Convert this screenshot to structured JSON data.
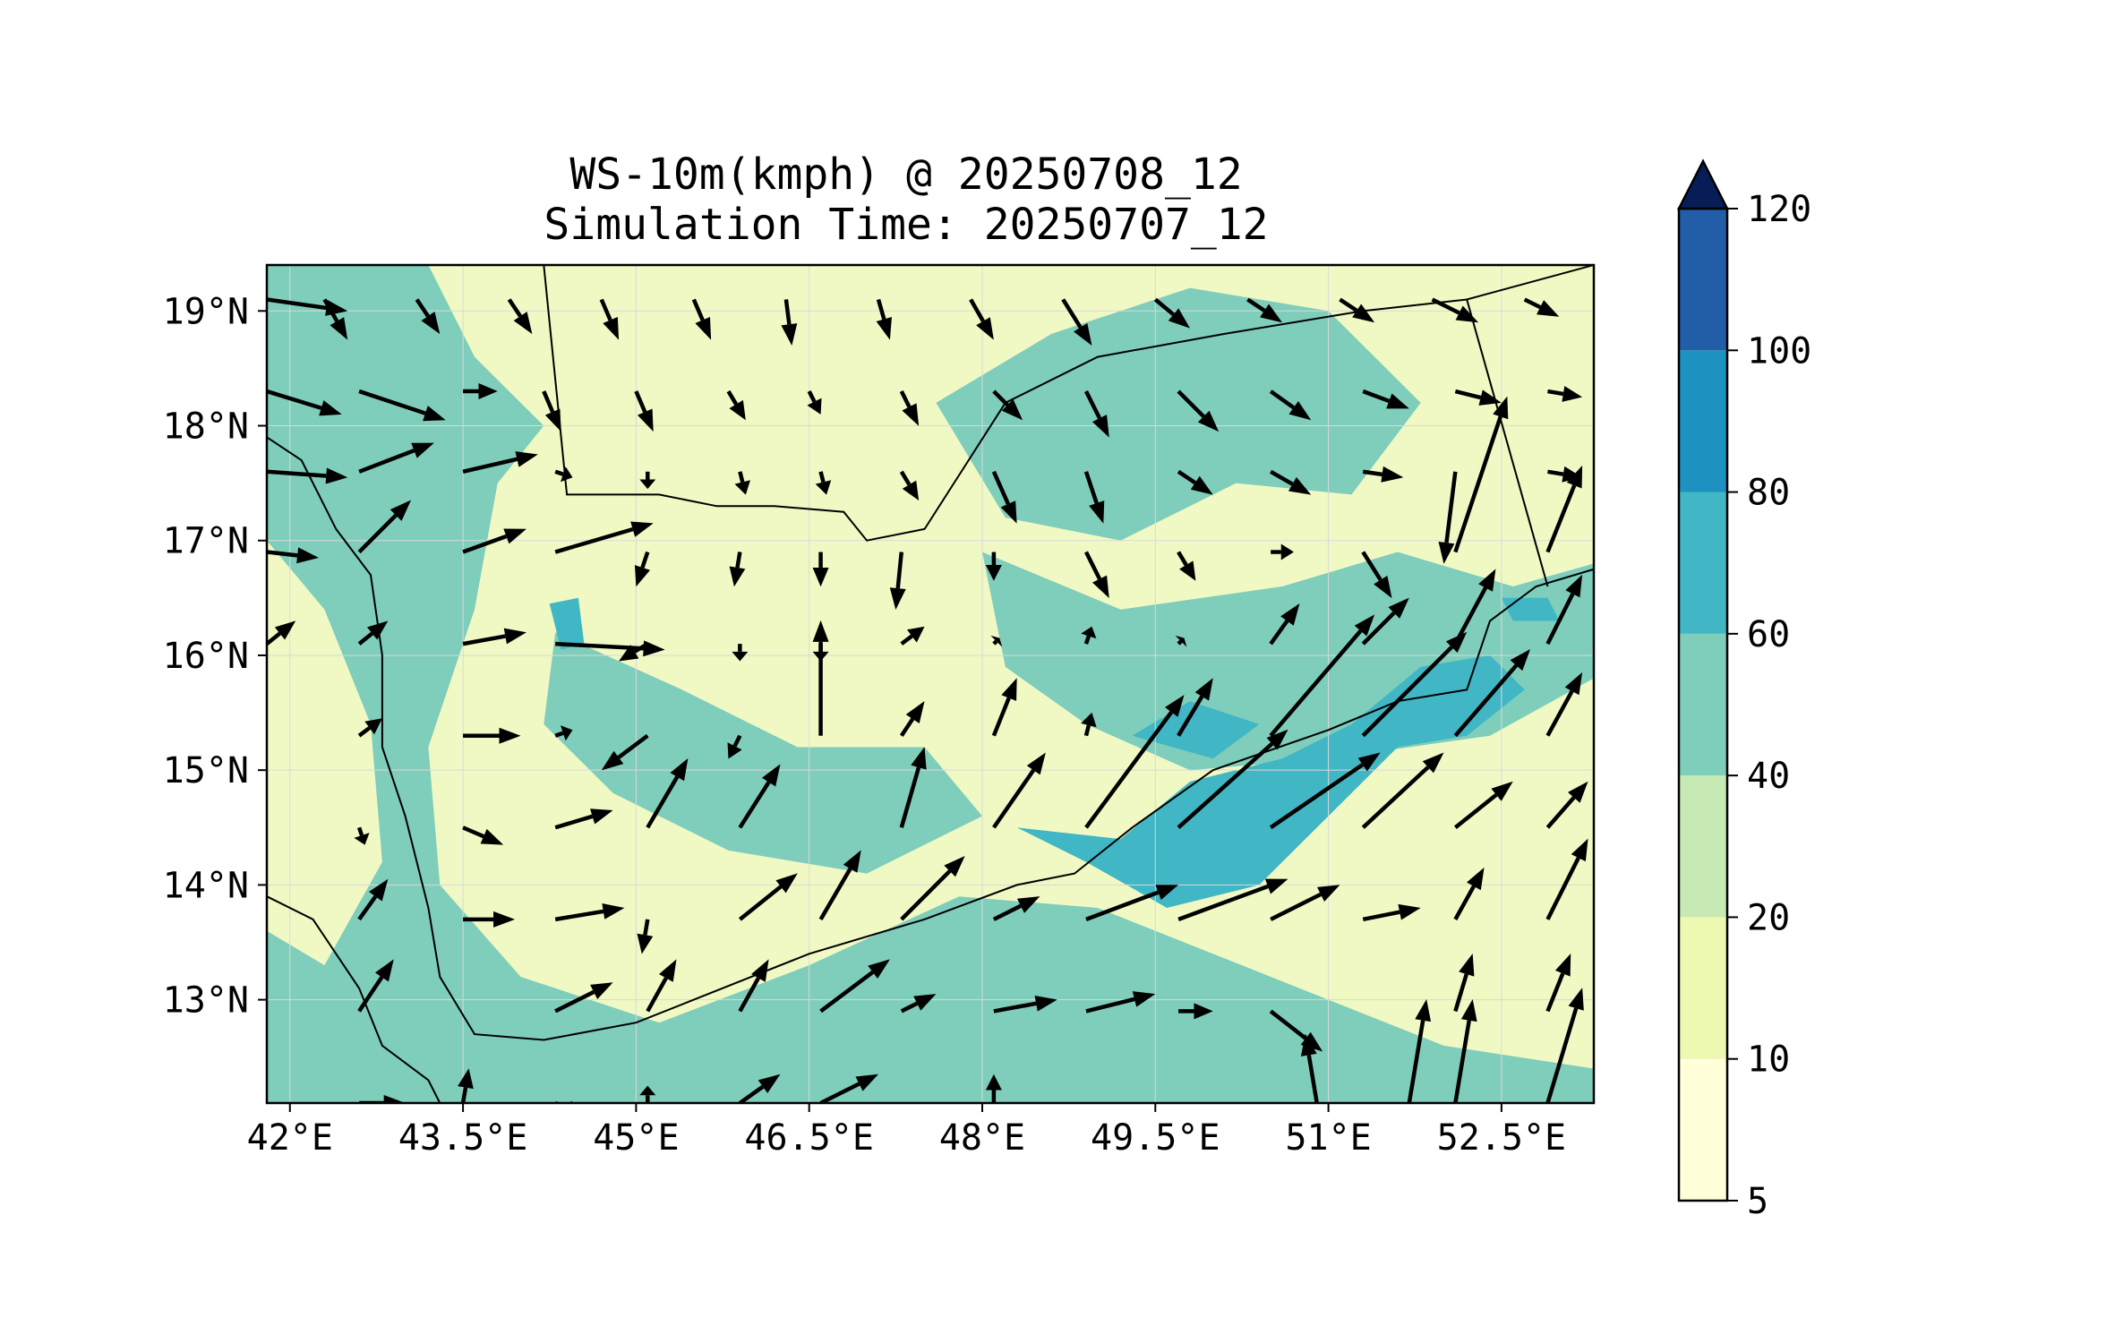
{
  "title": {
    "line1": "WS-10m(kmph) @ 20250708_12",
    "line2": "Simulation Time: 20250707_12"
  },
  "map": {
    "lon_range": [
      41.8,
      53.3
    ],
    "lat_range": [
      12.1,
      19.4
    ],
    "lon_ticks": [
      {
        "value": 42.0,
        "label": "42°E"
      },
      {
        "value": 43.5,
        "label": "43.5°E"
      },
      {
        "value": 45.0,
        "label": "45°E"
      },
      {
        "value": 46.5,
        "label": "46.5°E"
      },
      {
        "value": 48.0,
        "label": "48°E"
      },
      {
        "value": 49.5,
        "label": "49.5°E"
      },
      {
        "value": 51.0,
        "label": "51°E"
      },
      {
        "value": 52.5,
        "label": "52.5°E"
      }
    ],
    "lat_ticks": [
      {
        "value": 19,
        "label": "19°N"
      },
      {
        "value": 18,
        "label": "18°N"
      },
      {
        "value": 17,
        "label": "17°N"
      },
      {
        "value": 16,
        "label": "16°N"
      },
      {
        "value": 15,
        "label": "15°N"
      },
      {
        "value": 14,
        "label": "14°N"
      },
      {
        "value": 13,
        "label": "13°N"
      }
    ],
    "background_color": "#f0f9c4",
    "coastline_color": "#000000",
    "vector_color": "#000000"
  },
  "colorbar": {
    "levels": [
      {
        "value": 5,
        "label": "5"
      },
      {
        "value": 10,
        "label": "10"
      },
      {
        "value": 20,
        "label": "20"
      },
      {
        "value": 40,
        "label": "40"
      },
      {
        "value": 60,
        "label": "60"
      },
      {
        "value": 80,
        "label": "80"
      },
      {
        "value": 100,
        "label": "100"
      },
      {
        "value": 120,
        "label": "120"
      }
    ],
    "colors": [
      "#ffffd9",
      "#edf8b1",
      "#c7e9b4",
      "#7fcdbb",
      "#41b6c4",
      "#1d91c0",
      "#225ea8",
      "#253494"
    ],
    "extend_color": "#081d58",
    "extend": "max"
  },
  "wind_regions": [
    {
      "level": 20,
      "lonlat": [
        [
          41.8,
          19.4
        ],
        [
          43.2,
          19.4
        ],
        [
          43.6,
          18.6
        ],
        [
          44.2,
          18.0
        ],
        [
          43.8,
          17.5
        ],
        [
          43.6,
          16.4
        ],
        [
          43.2,
          15.2
        ],
        [
          43.3,
          14.0
        ],
        [
          44.0,
          13.2
        ],
        [
          45.2,
          12.8
        ],
        [
          46.5,
          13.3
        ],
        [
          47.8,
          13.9
        ],
        [
          49.0,
          13.8
        ],
        [
          50.5,
          13.2
        ],
        [
          52.0,
          12.6
        ],
        [
          53.3,
          12.4
        ],
        [
          53.3,
          12.1
        ],
        [
          41.8,
          12.1
        ],
        [
          41.8,
          13.6
        ],
        [
          42.3,
          13.3
        ],
        [
          42.8,
          14.2
        ],
        [
          42.7,
          15.4
        ],
        [
          42.3,
          16.4
        ],
        [
          41.8,
          17.0
        ]
      ]
    },
    {
      "level": 20,
      "lonlat": [
        [
          47.6,
          18.2
        ],
        [
          48.6,
          18.8
        ],
        [
          49.8,
          19.2
        ],
        [
          51.0,
          19.0
        ],
        [
          51.8,
          18.2
        ],
        [
          51.2,
          17.4
        ],
        [
          50.2,
          17.5
        ],
        [
          49.2,
          17.0
        ],
        [
          48.2,
          17.2
        ]
      ]
    },
    {
      "level": 20,
      "lonlat": [
        [
          48.0,
          16.9
        ],
        [
          49.2,
          16.4
        ],
        [
          50.6,
          16.6
        ],
        [
          51.6,
          16.9
        ],
        [
          52.6,
          16.6
        ],
        [
          53.3,
          16.8
        ],
        [
          53.3,
          15.8
        ],
        [
          52.4,
          15.3
        ],
        [
          51.0,
          15.1
        ],
        [
          49.8,
          15.0
        ],
        [
          48.9,
          15.4
        ],
        [
          48.2,
          15.9
        ]
      ]
    },
    {
      "level": 20,
      "lonlat": [
        [
          44.3,
          16.2
        ],
        [
          45.4,
          15.7
        ],
        [
          46.4,
          15.2
        ],
        [
          47.5,
          15.2
        ],
        [
          48.0,
          14.6
        ],
        [
          47.0,
          14.1
        ],
        [
          45.8,
          14.3
        ],
        [
          44.8,
          14.8
        ],
        [
          44.2,
          15.4
        ]
      ]
    },
    {
      "level": 40,
      "lonlat": [
        [
          48.3,
          14.5
        ],
        [
          49.2,
          14.4
        ],
        [
          49.8,
          14.9
        ],
        [
          50.6,
          15.1
        ],
        [
          51.2,
          15.4
        ],
        [
          51.8,
          15.9
        ],
        [
          52.4,
          16.0
        ],
        [
          52.7,
          15.7
        ],
        [
          52.2,
          15.3
        ],
        [
          51.6,
          15.2
        ],
        [
          51.0,
          14.6
        ],
        [
          50.4,
          14.0
        ],
        [
          49.6,
          13.8
        ],
        [
          48.9,
          14.2
        ]
      ]
    },
    {
      "level": 40,
      "lonlat": [
        [
          49.3,
          15.3
        ],
        [
          50.0,
          15.1
        ],
        [
          50.4,
          15.4
        ],
        [
          49.8,
          15.6
        ]
      ]
    },
    {
      "level": 40,
      "lonlat": [
        [
          52.6,
          16.3
        ],
        [
          53.0,
          16.3
        ],
        [
          52.9,
          16.5
        ],
        [
          52.5,
          16.5
        ]
      ]
    },
    {
      "level": 40,
      "lonlat": [
        [
          44.25,
          16.45
        ],
        [
          44.5,
          16.5
        ],
        [
          44.55,
          16.1
        ],
        [
          44.35,
          16.05
        ]
      ]
    }
  ],
  "land_outlines": [
    [
      [
        41.8,
        17.9
      ],
      [
        42.1,
        17.7
      ],
      [
        42.4,
        17.1
      ],
      [
        42.7,
        16.7
      ],
      [
        42.8,
        16.0
      ],
      [
        42.8,
        15.2
      ],
      [
        43.0,
        14.6
      ],
      [
        43.2,
        13.8
      ],
      [
        43.3,
        13.2
      ],
      [
        43.6,
        12.7
      ],
      [
        44.2,
        12.65
      ],
      [
        45.0,
        12.8
      ],
      [
        45.5,
        13.0
      ],
      [
        46.5,
        13.4
      ],
      [
        47.5,
        13.7
      ],
      [
        48.3,
        14.0
      ],
      [
        48.8,
        14.1
      ],
      [
        49.3,
        14.5
      ],
      [
        50.0,
        15.0
      ],
      [
        51.0,
        15.35
      ],
      [
        51.6,
        15.6
      ],
      [
        52.2,
        15.7
      ],
      [
        52.4,
        16.3
      ],
      [
        52.8,
        16.6
      ],
      [
        53.3,
        16.75
      ]
    ],
    [
      [
        44.2,
        19.4
      ],
      [
        44.4,
        17.4
      ],
      [
        45.2,
        17.4
      ],
      [
        45.7,
        17.3
      ],
      [
        46.2,
        17.3
      ],
      [
        46.8,
        17.25
      ],
      [
        47.0,
        17.0
      ],
      [
        47.5,
        17.1
      ],
      [
        48.2,
        18.2
      ],
      [
        49.0,
        18.6
      ],
      [
        50.1,
        18.8
      ],
      [
        51.3,
        19.0
      ],
      [
        52.2,
        19.1
      ],
      [
        53.3,
        19.4
      ]
    ],
    [
      [
        52.2,
        19.1
      ],
      [
        52.9,
        16.6
      ]
    ],
    [
      [
        41.8,
        13.9
      ],
      [
        42.2,
        13.7
      ],
      [
        42.6,
        13.1
      ],
      [
        42.8,
        12.6
      ],
      [
        43.2,
        12.3
      ],
      [
        43.3,
        12.1
      ]
    ]
  ],
  "wind_vectors": [
    [
      41.8,
      19.1,
      0.7,
      -0.1
    ],
    [
      42.3,
      19.1,
      0.2,
      -0.35
    ],
    [
      43.1,
      19.1,
      0.2,
      -0.3
    ],
    [
      43.9,
      19.1,
      0.2,
      -0.3
    ],
    [
      44.7,
      19.1,
      0.15,
      -0.35
    ],
    [
      45.5,
      19.1,
      0.15,
      -0.35
    ],
    [
      46.3,
      19.1,
      0.05,
      -0.4
    ],
    [
      47.1,
      19.1,
      0.1,
      -0.35
    ],
    [
      47.9,
      19.1,
      0.2,
      -0.35
    ],
    [
      48.7,
      19.1,
      0.25,
      -0.4
    ],
    [
      49.5,
      19.1,
      0.3,
      -0.25
    ],
    [
      50.3,
      19.1,
      0.3,
      -0.2
    ],
    [
      51.1,
      19.1,
      0.3,
      -0.2
    ],
    [
      51.9,
      19.1,
      0.4,
      -0.2
    ],
    [
      52.7,
      19.1,
      0.3,
      -0.15
    ],
    [
      41.8,
      18.3,
      0.65,
      -0.2
    ],
    [
      42.6,
      18.3,
      0.75,
      -0.25
    ],
    [
      43.5,
      18.3,
      0.3,
      0.0
    ],
    [
      44.2,
      18.3,
      0.15,
      -0.35
    ],
    [
      45.0,
      18.3,
      0.15,
      -0.35
    ],
    [
      45.8,
      18.3,
      0.15,
      -0.25
    ],
    [
      46.5,
      18.3,
      0.1,
      -0.2
    ],
    [
      47.3,
      18.3,
      0.15,
      -0.3
    ],
    [
      48.1,
      18.3,
      0.25,
      -0.25
    ],
    [
      48.9,
      18.3,
      0.2,
      -0.4
    ],
    [
      49.7,
      18.3,
      0.35,
      -0.35
    ],
    [
      50.5,
      18.3,
      0.35,
      -0.25
    ],
    [
      51.3,
      18.3,
      0.4,
      -0.15
    ],
    [
      52.1,
      18.3,
      0.4,
      -0.1
    ],
    [
      52.9,
      18.3,
      0.3,
      -0.05
    ],
    [
      41.8,
      17.6,
      0.7,
      -0.05
    ],
    [
      42.6,
      17.6,
      0.65,
      0.25
    ],
    [
      43.5,
      17.6,
      0.65,
      0.15
    ],
    [
      44.3,
      17.6,
      0.15,
      -0.05
    ],
    [
      45.1,
      17.6,
      0.0,
      -0.15
    ],
    [
      45.9,
      17.6,
      0.05,
      -0.2
    ],
    [
      46.6,
      17.6,
      0.05,
      -0.2
    ],
    [
      47.3,
      17.6,
      0.15,
      -0.25
    ],
    [
      48.1,
      17.6,
      0.2,
      -0.45
    ],
    [
      48.9,
      17.6,
      0.15,
      -0.45
    ],
    [
      49.7,
      17.6,
      0.3,
      -0.2
    ],
    [
      50.5,
      17.6,
      0.35,
      -0.2
    ],
    [
      51.3,
      17.6,
      0.35,
      -0.05
    ],
    [
      52.1,
      17.6,
      -0.1,
      -0.8
    ],
    [
      52.9,
      17.6,
      0.3,
      -0.05
    ],
    [
      41.8,
      16.9,
      0.45,
      -0.05
    ],
    [
      42.6,
      16.9,
      0.45,
      0.45
    ],
    [
      43.5,
      16.9,
      0.55,
      0.2
    ],
    [
      44.3,
      16.9,
      0.85,
      0.25
    ],
    [
      45.1,
      16.9,
      -0.1,
      -0.3
    ],
    [
      45.9,
      16.9,
      -0.05,
      -0.3
    ],
    [
      46.6,
      16.9,
      0.0,
      -0.3
    ],
    [
      47.3,
      16.9,
      -0.05,
      -0.5
    ],
    [
      48.1,
      16.9,
      0.0,
      -0.25
    ],
    [
      48.9,
      16.9,
      0.2,
      -0.4
    ],
    [
      49.7,
      16.9,
      0.15,
      -0.25
    ],
    [
      50.5,
      16.9,
      0.2,
      0.0
    ],
    [
      51.3,
      16.9,
      0.25,
      -0.4
    ],
    [
      52.1,
      16.9,
      0.45,
      1.35
    ],
    [
      52.9,
      16.9,
      0.3,
      0.75
    ],
    [
      41.8,
      16.1,
      0.25,
      0.2
    ],
    [
      42.6,
      16.1,
      0.25,
      0.2
    ],
    [
      43.5,
      16.1,
      0.55,
      0.1
    ],
    [
      44.3,
      16.1,
      0.95,
      -0.05
    ],
    [
      45.1,
      16.1,
      -0.25,
      -0.15
    ],
    [
      45.9,
      16.1,
      0.0,
      -0.15
    ],
    [
      46.6,
      16.1,
      0.0,
      -0.15
    ],
    [
      47.3,
      16.1,
      0.2,
      0.15
    ],
    [
      48.1,
      16.1,
      0.05,
      0.05
    ],
    [
      48.9,
      16.1,
      0.05,
      0.15
    ],
    [
      49.7,
      16.1,
      0.05,
      0.05
    ],
    [
      50.5,
      16.1,
      0.25,
      0.35
    ],
    [
      51.3,
      16.1,
      0.4,
      0.4
    ],
    [
      52.1,
      16.1,
      0.35,
      0.65
    ],
    [
      52.9,
      16.1,
      0.3,
      0.6
    ],
    [
      42.6,
      15.3,
      0.2,
      0.15
    ],
    [
      43.5,
      15.3,
      0.5,
      0.0
    ],
    [
      44.3,
      15.3,
      0.15,
      0.05
    ],
    [
      45.1,
      15.3,
      -0.4,
      -0.3
    ],
    [
      45.9,
      15.3,
      -0.1,
      -0.2
    ],
    [
      46.6,
      15.3,
      0.0,
      1.0
    ],
    [
      47.3,
      15.3,
      0.2,
      0.3
    ],
    [
      48.1,
      15.3,
      0.2,
      0.5
    ],
    [
      48.9,
      15.3,
      0.05,
      0.2
    ],
    [
      49.7,
      15.3,
      0.3,
      0.5
    ],
    [
      50.5,
      15.3,
      0.9,
      1.05
    ],
    [
      51.3,
      15.3,
      0.9,
      0.9
    ],
    [
      52.1,
      15.3,
      0.65,
      0.75
    ],
    [
      52.9,
      15.3,
      0.3,
      0.55
    ],
    [
      42.6,
      14.5,
      0.05,
      -0.15
    ],
    [
      43.5,
      14.5,
      0.35,
      -0.15
    ],
    [
      44.3,
      14.5,
      0.5,
      0.15
    ],
    [
      45.1,
      14.5,
      0.35,
      0.6
    ],
    [
      45.9,
      14.5,
      0.35,
      0.55
    ],
    [
      46.6,
      14.5,
      0.0,
      0.0
    ],
    [
      47.3,
      14.5,
      0.2,
      0.7
    ],
    [
      48.1,
      14.5,
      0.45,
      0.65
    ],
    [
      48.9,
      14.5,
      0.85,
      1.15
    ],
    [
      49.7,
      14.5,
      0.95,
      0.85
    ],
    [
      50.5,
      14.5,
      0.95,
      0.65
    ],
    [
      51.3,
      14.5,
      0.7,
      0.65
    ],
    [
      52.1,
      14.5,
      0.5,
      0.4
    ],
    [
      52.9,
      14.5,
      0.35,
      0.4
    ],
    [
      42.6,
      13.7,
      0.25,
      0.35
    ],
    [
      43.5,
      13.7,
      0.45,
      0.0
    ],
    [
      44.3,
      13.7,
      0.6,
      0.1
    ],
    [
      45.1,
      13.7,
      -0.05,
      -0.3
    ],
    [
      45.9,
      13.7,
      0.5,
      0.4
    ],
    [
      46.6,
      13.7,
      0.35,
      0.6
    ],
    [
      47.3,
      13.7,
      0.55,
      0.55
    ],
    [
      48.1,
      13.7,
      0.4,
      0.2
    ],
    [
      48.9,
      13.7,
      0.8,
      0.3
    ],
    [
      49.7,
      13.7,
      0.95,
      0.35
    ],
    [
      50.5,
      13.7,
      0.6,
      0.3
    ],
    [
      51.3,
      13.7,
      0.5,
      0.1
    ],
    [
      52.1,
      13.7,
      0.25,
      0.45
    ],
    [
      52.9,
      13.7,
      0.35,
      0.7
    ],
    [
      42.6,
      12.9,
      0.3,
      0.45
    ],
    [
      43.5,
      12.9,
      0.0,
      0.0
    ],
    [
      44.3,
      12.9,
      0.5,
      0.25
    ],
    [
      45.1,
      12.9,
      0.25,
      0.45
    ],
    [
      45.9,
      12.9,
      0.25,
      0.45
    ],
    [
      46.6,
      12.9,
      0.6,
      0.45
    ],
    [
      47.3,
      12.9,
      0.3,
      0.15
    ],
    [
      48.1,
      12.9,
      0.55,
      0.1
    ],
    [
      48.9,
      12.9,
      0.6,
      0.15
    ],
    [
      49.7,
      12.9,
      0.3,
      0.0
    ],
    [
      50.5,
      12.9,
      0.45,
      -0.35
    ],
    [
      51.3,
      12.9,
      0.0,
      0.0
    ],
    [
      52.1,
      12.9,
      0.15,
      0.5
    ],
    [
      52.9,
      12.9,
      0.2,
      0.5
    ],
    [
      42.6,
      12.1,
      0.4,
      0.0
    ],
    [
      43.5,
      12.1,
      0.05,
      0.3
    ],
    [
      44.3,
      12.1,
      0.25,
      -0.1
    ],
    [
      45.1,
      12.1,
      0.0,
      0.15
    ],
    [
      45.9,
      12.1,
      0.35,
      0.25
    ],
    [
      46.6,
      12.1,
      0.5,
      0.25
    ],
    [
      48.1,
      12.1,
      0.0,
      0.25
    ],
    [
      50.9,
      12.1,
      -0.1,
      0.6
    ],
    [
      51.7,
      12.1,
      0.15,
      0.9
    ],
    [
      52.1,
      12.1,
      0.15,
      0.9
    ],
    [
      52.9,
      12.1,
      0.3,
      1.0
    ]
  ]
}
